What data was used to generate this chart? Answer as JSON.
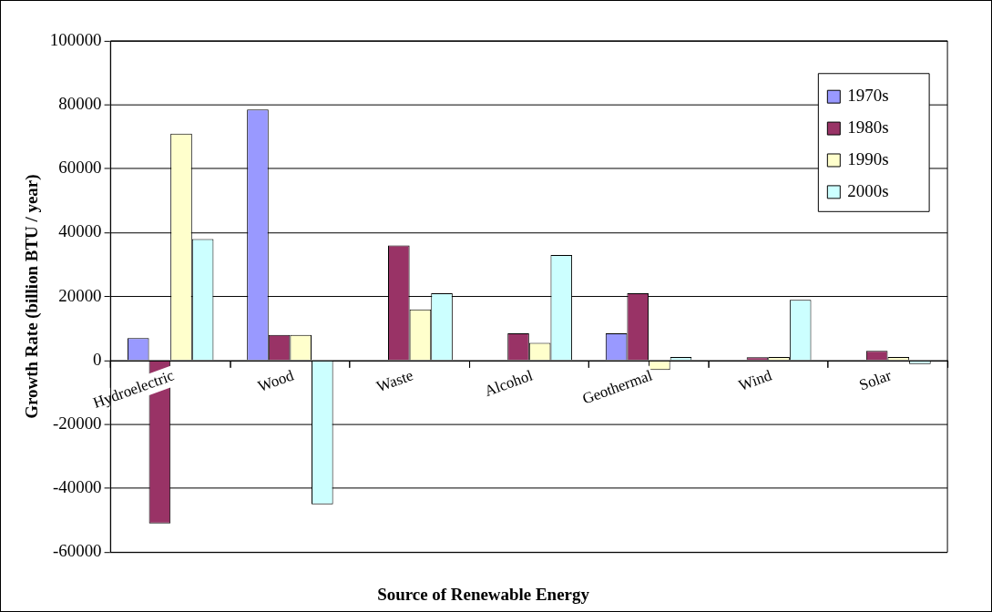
{
  "chart_data": {
    "type": "bar",
    "xlabel": "Source of Renewable Energy",
    "ylabel": "Growth Rate (billion BTU / year)",
    "categories": [
      "Hydroelectric",
      "Wood",
      "Waste",
      "Alcohol",
      "Geothermal",
      "Wind",
      "Solar"
    ],
    "series": [
      {
        "name": "1970s",
        "color": "#9999ff",
        "values": [
          7000,
          78500,
          0,
          0,
          8500,
          0,
          0
        ]
      },
      {
        "name": "1980s",
        "color": "#993366",
        "values": [
          -51000,
          8000,
          36000,
          8500,
          21000,
          1000,
          3000
        ]
      },
      {
        "name": "1990s",
        "color": "#ffffcc",
        "values": [
          71000,
          8000,
          16000,
          5500,
          -3000,
          1100,
          1100
        ]
      },
      {
        "name": "2000s",
        "color": "#ccffff",
        "values": [
          38000,
          -45000,
          21000,
          33000,
          1100,
          19000,
          -1100
        ]
      }
    ],
    "ylim": [
      -60000,
      100000
    ],
    "yticks": [
      -60000,
      -40000,
      -20000,
      0,
      20000,
      40000,
      60000,
      80000,
      100000
    ],
    "grid": "y",
    "legend": "top right"
  }
}
